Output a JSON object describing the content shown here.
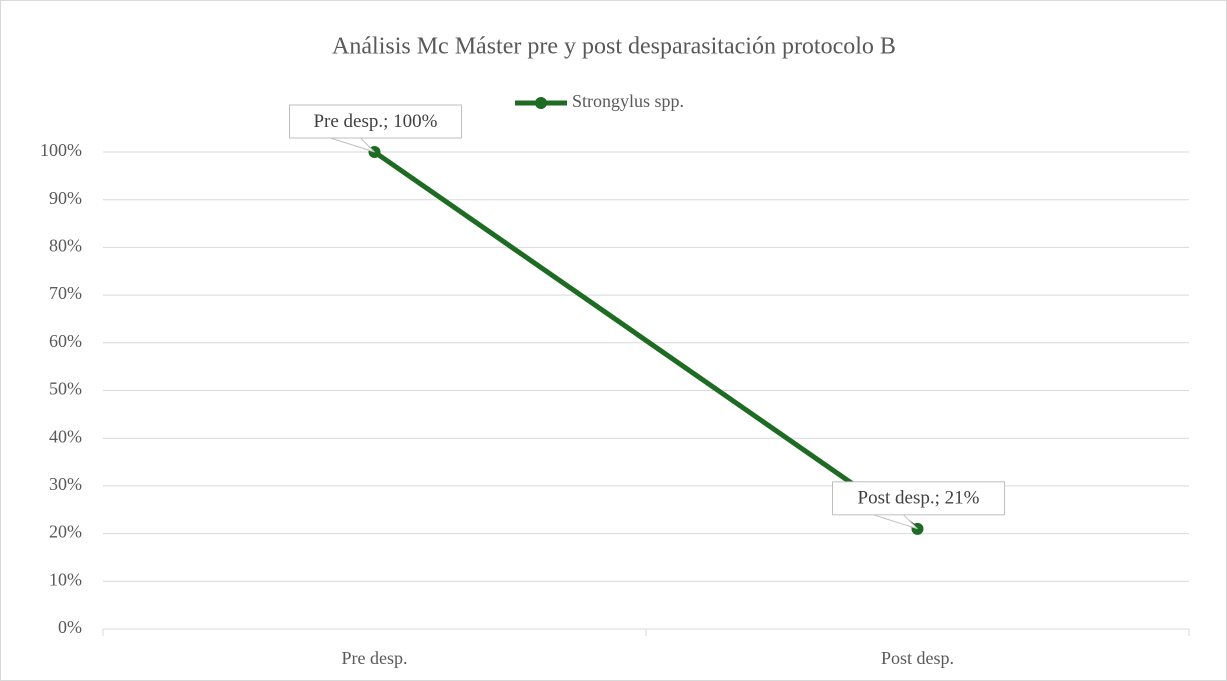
{
  "chart_data": {
    "type": "line",
    "title": "Análisis Mc Máster pre y post desparasitación protocolo B",
    "categories": [
      "Pre desp.",
      "Post desp."
    ],
    "series": [
      {
        "name": "Strongylus spp.",
        "color": "#1e6b23",
        "values": [
          100,
          21
        ],
        "value_labels": [
          "Pre desp.; 100%",
          "Post desp.; 21%"
        ]
      }
    ],
    "ylim": [
      0,
      100
    ],
    "yticks": [
      {
        "value": 0,
        "label": "0%"
      },
      {
        "value": 10,
        "label": "10%"
      },
      {
        "value": 20,
        "label": "20%"
      },
      {
        "value": 30,
        "label": "30%"
      },
      {
        "value": 40,
        "label": "40%"
      },
      {
        "value": 50,
        "label": "50%"
      },
      {
        "value": 60,
        "label": "60%"
      },
      {
        "value": 70,
        "label": "70%"
      },
      {
        "value": 80,
        "label": "80%"
      },
      {
        "value": 90,
        "label": "90%"
      },
      {
        "value": 100,
        "label": "100%"
      }
    ],
    "grid": true,
    "legend": "top"
  }
}
